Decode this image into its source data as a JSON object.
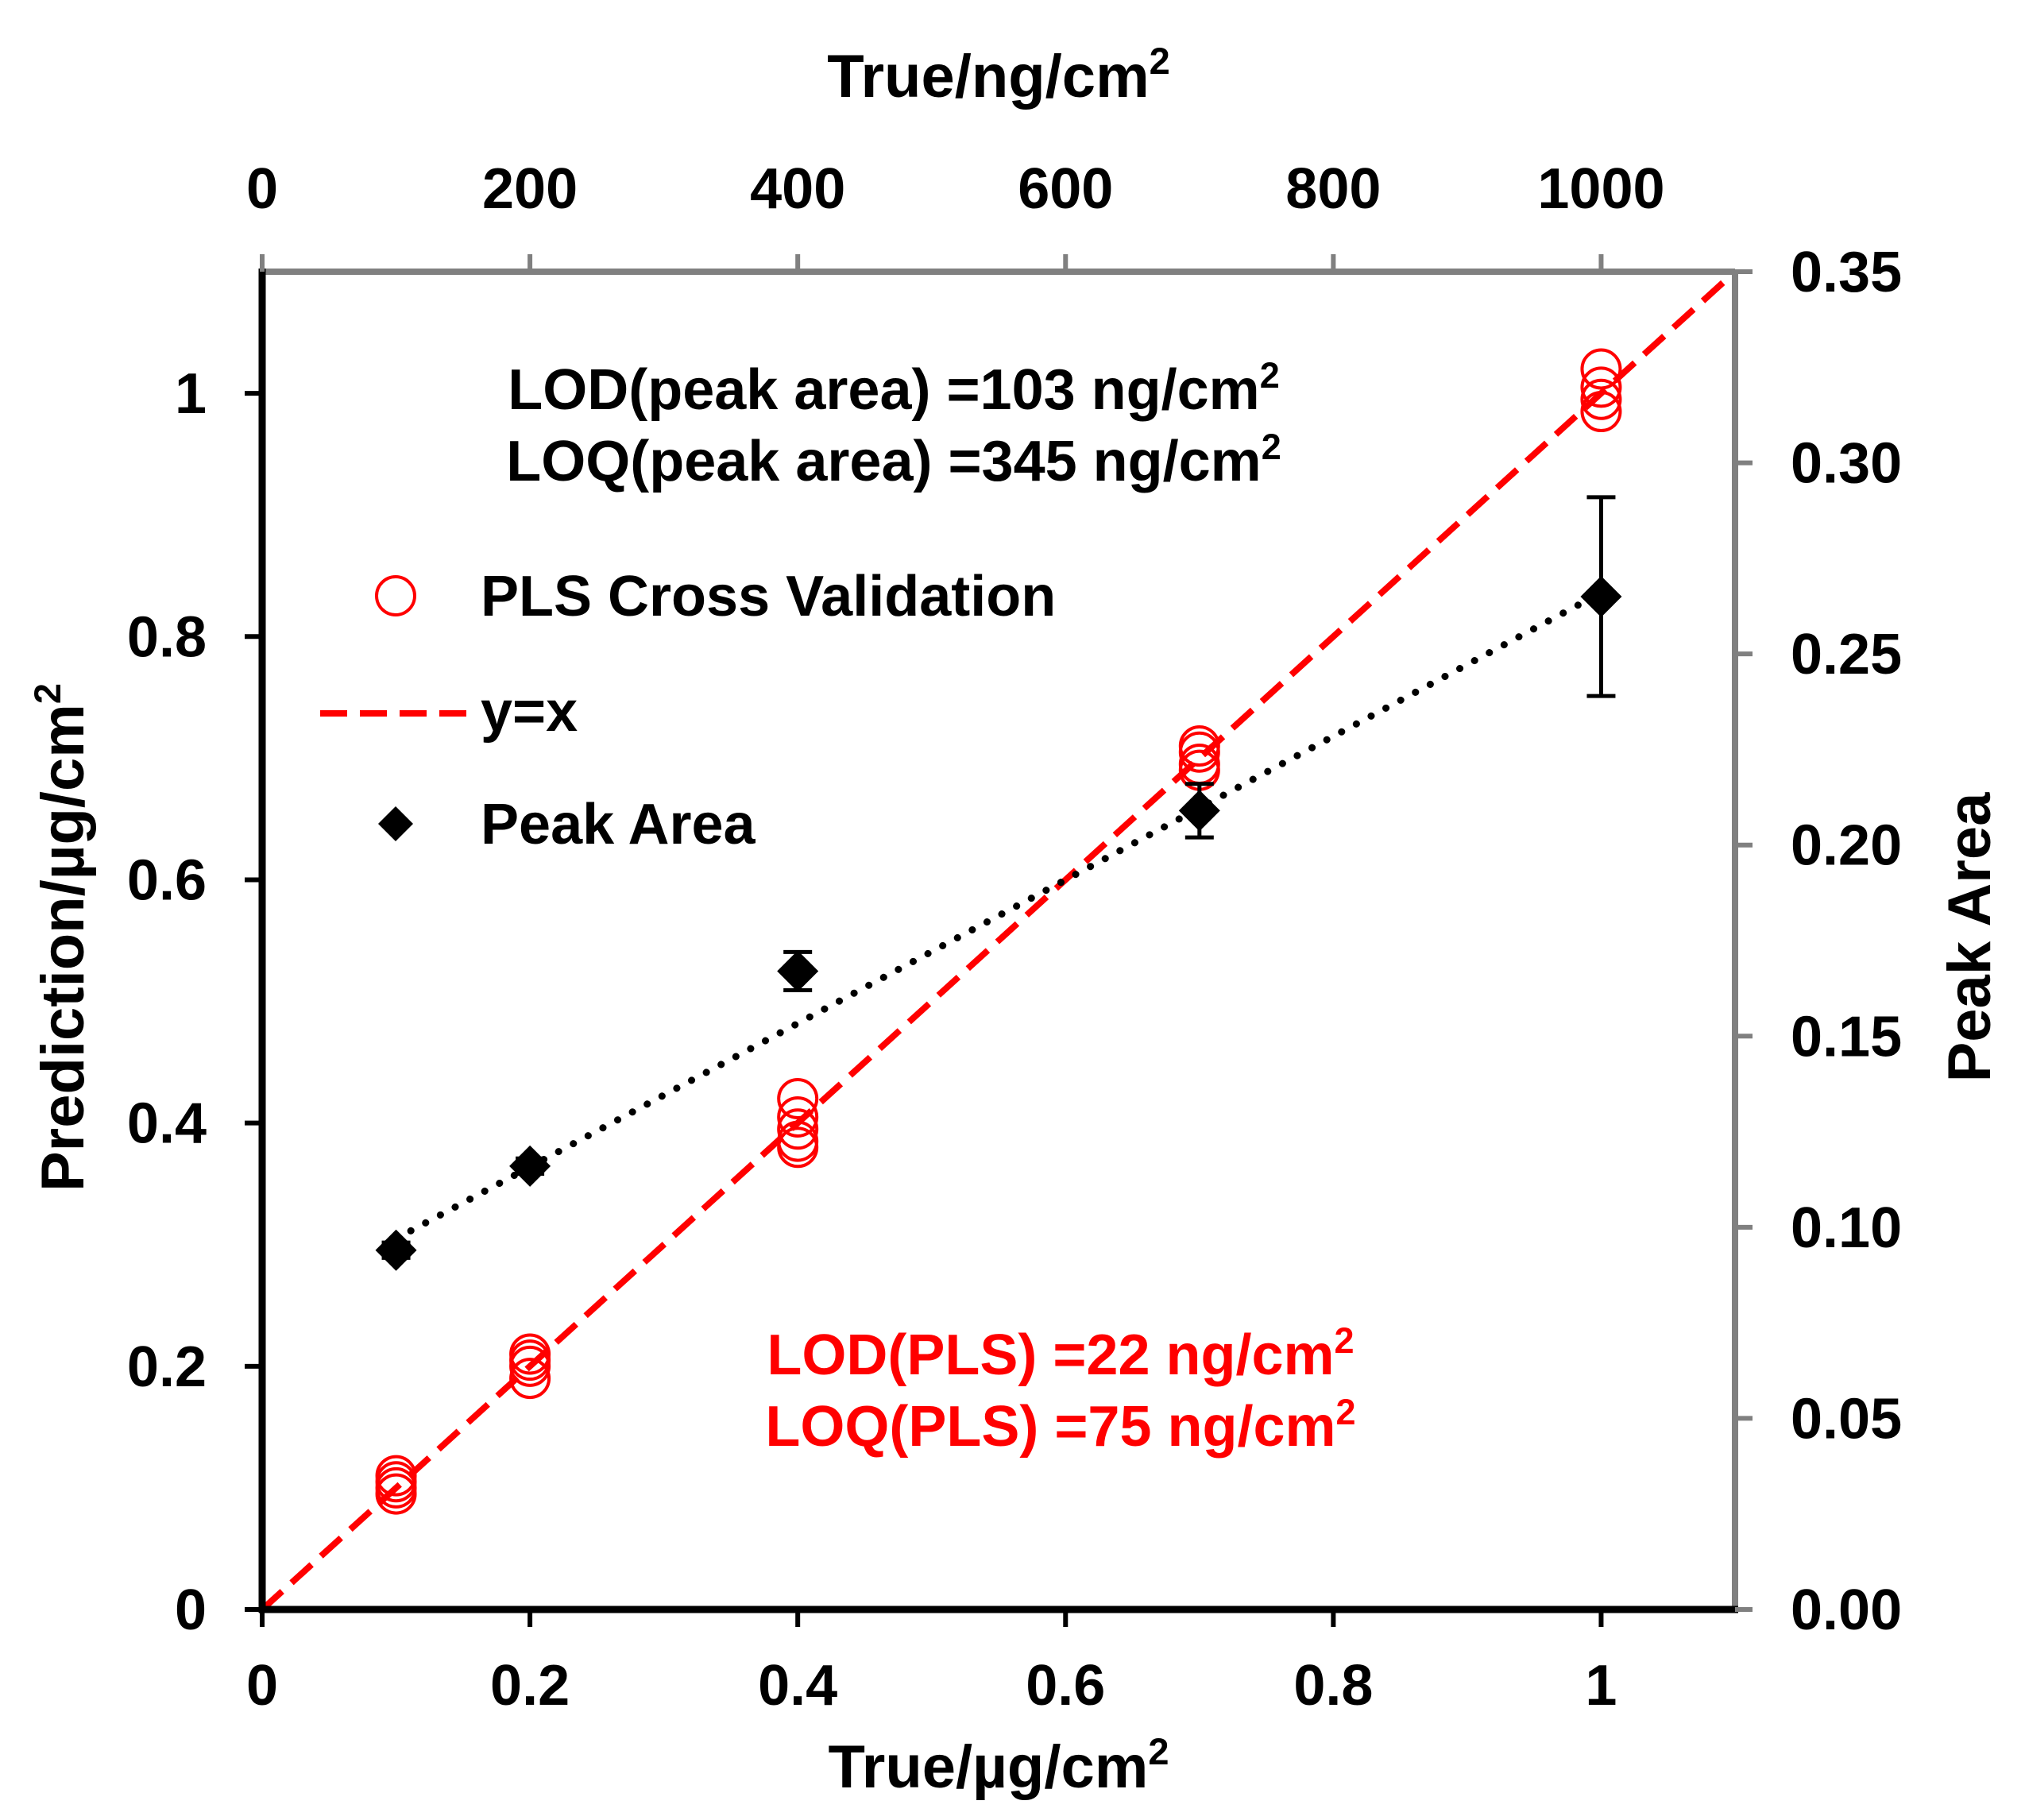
{
  "chart_data": {
    "type": "scatter",
    "title": "",
    "xlabel": "True/µg/cm",
    "xlabel_sup": "2",
    "ylabel": "Prediction/µg/cm",
    "ylabel_sup": "2",
    "x2label": "True/ng/cm",
    "x2label_sup": "2",
    "y2label": "Peak Area",
    "xlim": [
      0,
      1.1
    ],
    "ylim": [
      0,
      1.1
    ],
    "x2lim": [
      0,
      1100
    ],
    "y2lim": [
      0,
      0.35
    ],
    "xticks": [
      "0",
      "0.2",
      "0.4",
      "0.6",
      "0.8",
      "1"
    ],
    "xtick_values": [
      0,
      0.2,
      0.4,
      0.6,
      0.8,
      1.0
    ],
    "yticks": [
      "0",
      "0.2",
      "0.4",
      "0.6",
      "0.8",
      "1"
    ],
    "ytick_values": [
      0,
      0.2,
      0.4,
      0.6,
      0.8,
      1.0
    ],
    "x2ticks": [
      "0",
      "200",
      "400",
      "600",
      "800",
      "1000"
    ],
    "x2tick_values": [
      0,
      200,
      400,
      600,
      800,
      1000
    ],
    "y2ticks": [
      "0.00",
      "0.05",
      "0.10",
      "0.15",
      "0.20",
      "0.25",
      "0.30",
      "0.35"
    ],
    "y2tick_values": [
      0,
      0.05,
      0.1,
      0.15,
      0.2,
      0.25,
      0.3,
      0.35
    ],
    "grid": false,
    "series": [
      {
        "name": "PLS Cross Validation",
        "marker": "open-circle",
        "color": "#ff0000",
        "axis": "left",
        "x": [
          0.1,
          0.1,
          0.1,
          0.1,
          0.2,
          0.2,
          0.2,
          0.2,
          0.4,
          0.4,
          0.4,
          0.4,
          0.4,
          0.7,
          0.7,
          0.7,
          0.7,
          1.0,
          1.0,
          1.0,
          1.0
        ],
        "y": [
          0.11,
          0.105,
          0.1,
          0.095,
          0.21,
          0.205,
          0.2,
          0.19,
          0.42,
          0.405,
          0.395,
          0.385,
          0.38,
          0.71,
          0.705,
          0.695,
          0.69,
          1.02,
          1.005,
          0.995,
          0.985
        ]
      },
      {
        "name": "y=x",
        "line": "dashed",
        "color": "#ff0000",
        "axis": "left",
        "x": [
          0,
          1.1
        ],
        "y": [
          0,
          1.1
        ]
      },
      {
        "name": "Peak Area",
        "marker": "filled-diamond",
        "color": "#000000",
        "axis": "right",
        "x": [
          0.1,
          0.2,
          0.4,
          0.7,
          1.0
        ],
        "y": [
          0.094,
          0.116,
          0.167,
          0.209,
          0.265
        ],
        "error": [
          0.002,
          0.002,
          0.005,
          0.007,
          0.026
        ]
      },
      {
        "name": "Peak Area trend",
        "line": "dotted",
        "color": "#000000",
        "axis": "right",
        "x": [
          0.1,
          1.0
        ],
        "y": [
          0.097,
          0.266
        ]
      }
    ],
    "annotations": [
      {
        "text": "LOD(peak area) =103 ng/cm",
        "sup": "2",
        "color": "#000000"
      },
      {
        "text": "LOQ(peak area) =345 ng/cm",
        "sup": "2",
        "color": "#000000"
      },
      {
        "text": "LOD(PLS) =22 ng/cm",
        "sup": "2",
        "color": "#ff0000"
      },
      {
        "text": "LOQ(PLS) =75 ng/cm",
        "sup": "2",
        "color": "#ff0000"
      }
    ],
    "legend": [
      {
        "label": "PLS Cross Validation",
        "symbol": "open-circle",
        "color": "#ff0000"
      },
      {
        "label": "y=x",
        "symbol": "dashed-line",
        "color": "#ff0000"
      },
      {
        "label": "Peak Area",
        "symbol": "filled-diamond",
        "color": "#000000"
      }
    ],
    "legend_position": "top-left"
  }
}
